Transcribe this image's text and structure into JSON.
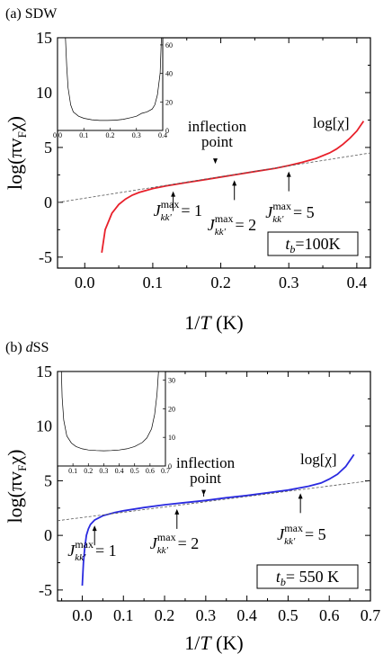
{
  "chart_data": [
    {
      "panel_label": "(a)",
      "panel_name": "SDW",
      "type": "line",
      "xlabel_main": "1/",
      "xlabel_italic": "T",
      "xlabel_unit": " (K)",
      "ylabel": "log(πv",
      "ylabel_sub": "F",
      "ylabel_end": "χ)",
      "xlim": [
        -0.04,
        0.42
      ],
      "ylim": [
        -6,
        15
      ],
      "xticks": [
        0.0,
        0.1,
        0.2,
        0.3,
        0.4
      ],
      "xtick_labels": [
        "0.0",
        "0.1",
        "0.2",
        "0.3",
        "0.4"
      ],
      "yticks": [
        -5,
        0,
        5,
        10,
        15
      ],
      "ytick_labels": [
        "-5",
        "0",
        "5",
        "10",
        "15"
      ],
      "series": [
        {
          "name": "log[χ]",
          "color": "#e8202a",
          "x": [
            0.025,
            0.03,
            0.04,
            0.05,
            0.06,
            0.07,
            0.08,
            0.1,
            0.12,
            0.15,
            0.18,
            0.2,
            0.22,
            0.25,
            0.28,
            0.3,
            0.32,
            0.34,
            0.36,
            0.37,
            0.38,
            0.39,
            0.4,
            0.41
          ],
          "y": [
            -4.6,
            -2.5,
            -1.0,
            -0.2,
            0.3,
            0.65,
            0.9,
            1.25,
            1.5,
            1.8,
            2.1,
            2.3,
            2.5,
            2.8,
            3.1,
            3.35,
            3.65,
            4.0,
            4.5,
            4.85,
            5.3,
            5.85,
            6.5,
            7.4
          ]
        },
        {
          "name": "",
          "color": "#555555",
          "dashed": true,
          "x": [
            -0.04,
            0.42
          ],
          "y": [
            -0.02,
            4.5
          ]
        }
      ],
      "series_label": "log[χ]",
      "annotations": [
        {
          "text": "inflection",
          "text2": "point",
          "x": 0.192,
          "y": 3.1
        },
        {
          "J_max": "1",
          "x": 0.13,
          "y": 1.5
        },
        {
          "J_max": "2",
          "x": 0.22,
          "y": 2.5
        },
        {
          "J_max": "5",
          "x": 0.3,
          "y": 3.3
        }
      ],
      "j_symbol": "J",
      "j_sub": "kk'",
      "j_sup": "max",
      "j_eq": "= ",
      "box_t": "t",
      "box_sub": "b",
      "box_value": "=100K",
      "inset": {
        "xlim": [
          0,
          0.4
        ],
        "ylim": [
          0,
          65
        ],
        "xtick_labels": [
          "0.0",
          "0.1",
          "0.2",
          "0.3",
          "0.4"
        ],
        "ytick_labels": [
          "0",
          "20",
          "40",
          "60"
        ],
        "yticks": [
          0,
          20,
          40,
          60
        ],
        "x": [
          0.03,
          0.035,
          0.04,
          0.05,
          0.06,
          0.08,
          0.1,
          0.13,
          0.16,
          0.19,
          0.22,
          0.25,
          0.28,
          0.3,
          0.32,
          0.34,
          0.36,
          0.37,
          0.38,
          0.39,
          0.395
        ],
        "y": [
          65,
          45,
          30,
          18,
          13,
          10,
          8.5,
          7.5,
          7.0,
          7.0,
          7.2,
          7.8,
          9.0,
          10.0,
          12.0,
          13.0,
          15.0,
          18.0,
          25.0,
          40.0,
          65.0
        ]
      }
    },
    {
      "panel_label": "(b)",
      "panel_name": "dSS",
      "panel_name_italic": "d",
      "panel_name_rest": "SS",
      "type": "line",
      "xlabel_main": "1/",
      "xlabel_italic": "T",
      "xlabel_unit": " (K)",
      "ylabel": "log(πv",
      "ylabel_sub": "F",
      "ylabel_end": "χ)",
      "xlim": [
        -0.06,
        0.7
      ],
      "ylim": [
        -6,
        15
      ],
      "xticks": [
        0.0,
        0.1,
        0.2,
        0.3,
        0.4,
        0.5,
        0.6,
        0.7
      ],
      "xtick_labels": [
        "0.0",
        "0.1",
        "0.2",
        "0.3",
        "0.4",
        "0.5",
        "0.6",
        "0.7"
      ],
      "yticks": [
        -5,
        0,
        5,
        10,
        15
      ],
      "ytick_labels": [
        "-5",
        "0",
        "5",
        "10",
        "15"
      ],
      "series": [
        {
          "name": "log[χ]",
          "color": "#2a2ae0",
          "x": [
            0.0,
            0.003,
            0.006,
            0.01,
            0.015,
            0.02,
            0.03,
            0.05,
            0.08,
            0.1,
            0.15,
            0.2,
            0.25,
            0.3,
            0.35,
            0.4,
            0.45,
            0.5,
            0.55,
            0.58,
            0.6,
            0.62,
            0.64,
            0.66
          ],
          "y": [
            -4.6,
            -2.5,
            -1.2,
            0.0,
            0.6,
            1.0,
            1.4,
            1.8,
            2.1,
            2.25,
            2.55,
            2.8,
            3.0,
            3.2,
            3.45,
            3.65,
            3.9,
            4.15,
            4.5,
            4.8,
            5.15,
            5.6,
            6.3,
            7.4
          ]
        },
        {
          "name": "",
          "color": "#555555",
          "dashed": true,
          "x": [
            -0.06,
            0.7
          ],
          "y": [
            1.35,
            5.0
          ]
        }
      ],
      "series_label": "log[χ]",
      "annotations": [
        {
          "text": "inflection",
          "text2": "point",
          "x": 0.295,
          "y": 3.25
        },
        {
          "J_max": "1",
          "x": 0.03,
          "y": 1.4
        },
        {
          "J_max": "2",
          "x": 0.23,
          "y": 2.9
        },
        {
          "J_max": "5",
          "x": 0.53,
          "y": 4.35
        }
      ],
      "j_symbol": "J",
      "j_sub": "kk'",
      "j_sup": "max",
      "j_eq": "= ",
      "box_t": "t",
      "box_sub": "b",
      "box_value": "= 550 K",
      "inset": {
        "xlim": [
          0,
          0.7
        ],
        "ylim": [
          0,
          33
        ],
        "xtick_labels": [
          "0.1",
          "0.2",
          "0.3",
          "0.4",
          "0.5",
          "0.6",
          "0.7"
        ],
        "xticks": [
          0.1,
          0.2,
          0.3,
          0.4,
          0.5,
          0.6,
          0.7
        ],
        "ytick_labels": [
          "0",
          "10",
          "20",
          "30"
        ],
        "yticks": [
          0,
          10,
          20,
          30
        ],
        "x": [
          0.025,
          0.03,
          0.04,
          0.06,
          0.09,
          0.12,
          0.16,
          0.2,
          0.25,
          0.3,
          0.35,
          0.4,
          0.45,
          0.5,
          0.55,
          0.58,
          0.61,
          0.63,
          0.645,
          0.655
        ],
        "y": [
          33,
          24,
          16,
          10.5,
          8.0,
          6.8,
          6.0,
          5.6,
          5.4,
          5.3,
          5.4,
          5.6,
          6.0,
          6.8,
          8.2,
          9.8,
          13,
          18,
          25,
          33
        ]
      }
    }
  ]
}
